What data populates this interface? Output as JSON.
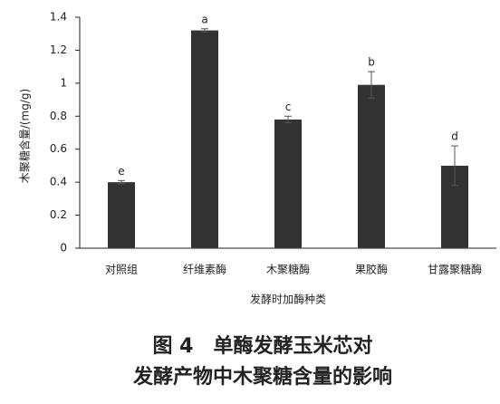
{
  "chart_data": {
    "type": "bar",
    "ylabel": "木聚糖含量/(mg/g)",
    "xlabel": "发酵时加酶种类",
    "caption": [
      "图 4　单酶发酵玉米芯对",
      "发酵产物中木聚糖含量的影响"
    ],
    "categories": [
      "对照组",
      "纤维素酶",
      "木聚糖酶",
      "果胶酶",
      "甘露聚糖酶"
    ],
    "values": [
      0.4,
      1.32,
      0.78,
      0.99,
      0.5
    ],
    "errors": [
      0.01,
      0.01,
      0.02,
      0.08,
      0.12
    ],
    "annotations": [
      "e",
      "a",
      "c",
      "b",
      "d"
    ],
    "color": "#333333",
    "ylim": [
      0,
      1.4
    ],
    "yticks": [
      0,
      0.2,
      0.4,
      0.6,
      0.8,
      1,
      1.2,
      1.4
    ]
  }
}
